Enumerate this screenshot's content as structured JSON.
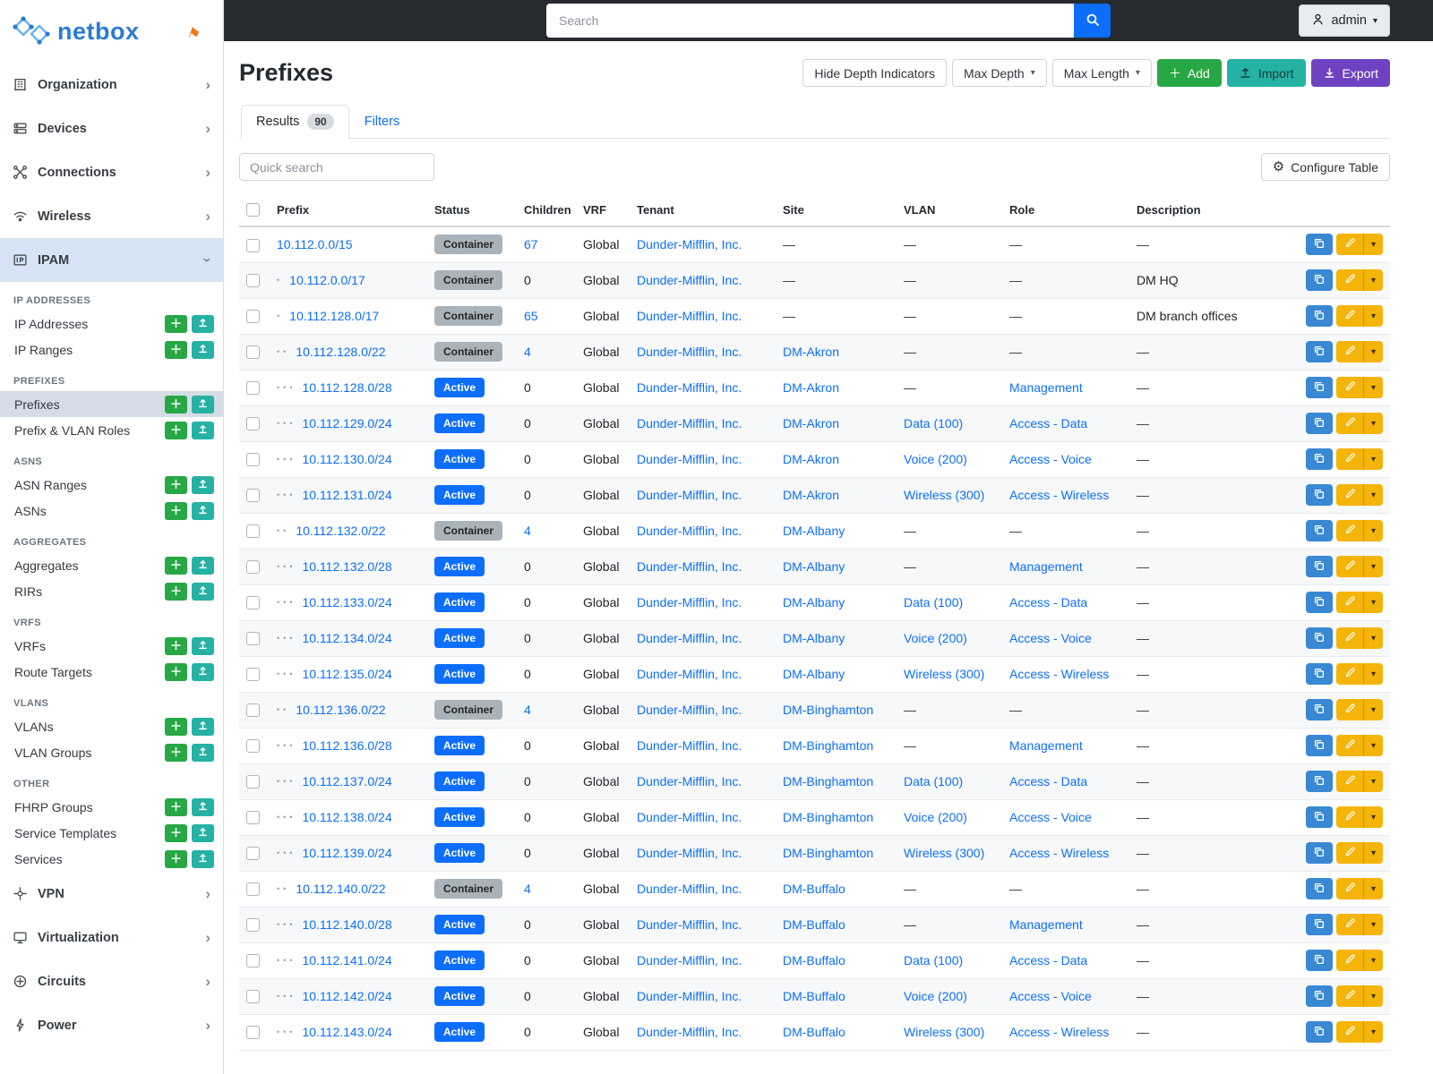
{
  "brand": {
    "name": "netbox"
  },
  "colors": {
    "brand_blue": "#2b7bd3",
    "topbar_bg": "#272b30",
    "link": "#0d6efd",
    "active_badge": "#0d6efd",
    "container_badge": "#aab2ba",
    "green": "#28a745",
    "teal": "#25b2a4",
    "purple": "#6f42c1",
    "yellow": "#f5b409",
    "action_blue": "#3988d4",
    "nav_active_bg": "#d6e4f5",
    "selected_item_bg": "#d4dce5"
  },
  "topbar": {
    "search_placeholder": "Search",
    "user_label": "admin"
  },
  "sidebar": {
    "nav_top": [
      {
        "label": "Organization",
        "icon": "building"
      },
      {
        "label": "Devices",
        "icon": "devices"
      },
      {
        "label": "Connections",
        "icon": "connections"
      },
      {
        "label": "Wireless",
        "icon": "wireless"
      },
      {
        "label": "IPAM",
        "icon": "ipam",
        "active": true,
        "expanded": true
      }
    ],
    "ipam_sections": [
      {
        "header": "IP ADDRESSES",
        "items": [
          {
            "label": "IP Addresses"
          },
          {
            "label": "IP Ranges"
          }
        ]
      },
      {
        "header": "PREFIXES",
        "items": [
          {
            "label": "Prefixes",
            "selected": true
          },
          {
            "label": "Prefix & VLAN Roles"
          }
        ]
      },
      {
        "header": "ASNS",
        "items": [
          {
            "label": "ASN Ranges"
          },
          {
            "label": "ASNs"
          }
        ]
      },
      {
        "header": "AGGREGATES",
        "items": [
          {
            "label": "Aggregates"
          },
          {
            "label": "RIRs"
          }
        ]
      },
      {
        "header": "VRFS",
        "items": [
          {
            "label": "VRFs"
          },
          {
            "label": "Route Targets"
          }
        ]
      },
      {
        "header": "VLANS",
        "items": [
          {
            "label": "VLANs"
          },
          {
            "label": "VLAN Groups"
          }
        ]
      },
      {
        "header": "OTHER",
        "items": [
          {
            "label": "FHRP Groups"
          },
          {
            "label": "Service Templates"
          },
          {
            "label": "Services"
          }
        ]
      }
    ],
    "nav_bottom": [
      {
        "label": "VPN",
        "icon": "vpn"
      },
      {
        "label": "Virtualization",
        "icon": "virtualization"
      },
      {
        "label": "Circuits",
        "icon": "circuits"
      },
      {
        "label": "Power",
        "icon": "power"
      }
    ]
  },
  "page": {
    "title": "Prefixes",
    "actions": {
      "hide_depth": "Hide Depth Indicators",
      "max_depth": "Max Depth",
      "max_length": "Max Length",
      "add": "Add",
      "import": "Import",
      "export": "Export"
    },
    "tabs": [
      {
        "label": "Results",
        "badge": "90"
      },
      {
        "label": "Filters"
      }
    ],
    "quick_search_placeholder": "Quick search",
    "configure_table": "Configure Table"
  },
  "table": {
    "columns": [
      "Prefix",
      "Status",
      "Children",
      "VRF",
      "Tenant",
      "Site",
      "VLAN",
      "Role",
      "Description"
    ],
    "rows": [
      {
        "prefix": "10.112.0.0/15",
        "depth": 0,
        "status": "Container",
        "children": "67",
        "vrf": "Global",
        "tenant": "Dunder-Mifflin, Inc.",
        "site": "",
        "vlan": "",
        "role": "",
        "description": ""
      },
      {
        "prefix": "10.112.0.0/17",
        "depth": 1,
        "status": "Container",
        "children": "0",
        "vrf": "Global",
        "tenant": "Dunder-Mifflin, Inc.",
        "site": "",
        "vlan": "",
        "role": "",
        "description": "DM HQ"
      },
      {
        "prefix": "10.112.128.0/17",
        "depth": 1,
        "status": "Container",
        "children": "65",
        "vrf": "Global",
        "tenant": "Dunder-Mifflin, Inc.",
        "site": "",
        "vlan": "",
        "role": "",
        "description": "DM branch offices"
      },
      {
        "prefix": "10.112.128.0/22",
        "depth": 2,
        "status": "Container",
        "children": "4",
        "vrf": "Global",
        "tenant": "Dunder-Mifflin, Inc.",
        "site": "DM-Akron",
        "vlan": "",
        "role": "",
        "description": ""
      },
      {
        "prefix": "10.112.128.0/28",
        "depth": 3,
        "status": "Active",
        "children": "0",
        "vrf": "Global",
        "tenant": "Dunder-Mifflin, Inc.",
        "site": "DM-Akron",
        "vlan": "",
        "role": "Management",
        "description": ""
      },
      {
        "prefix": "10.112.129.0/24",
        "depth": 3,
        "status": "Active",
        "children": "0",
        "vrf": "Global",
        "tenant": "Dunder-Mifflin, Inc.",
        "site": "DM-Akron",
        "vlan": "Data (100)",
        "role": "Access - Data",
        "description": ""
      },
      {
        "prefix": "10.112.130.0/24",
        "depth": 3,
        "status": "Active",
        "children": "0",
        "vrf": "Global",
        "tenant": "Dunder-Mifflin, Inc.",
        "site": "DM-Akron",
        "vlan": "Voice (200)",
        "role": "Access - Voice",
        "description": ""
      },
      {
        "prefix": "10.112.131.0/24",
        "depth": 3,
        "status": "Active",
        "children": "0",
        "vrf": "Global",
        "tenant": "Dunder-Mifflin, Inc.",
        "site": "DM-Akron",
        "vlan": "Wireless (300)",
        "role": "Access - Wireless",
        "description": ""
      },
      {
        "prefix": "10.112.132.0/22",
        "depth": 2,
        "status": "Container",
        "children": "4",
        "vrf": "Global",
        "tenant": "Dunder-Mifflin, Inc.",
        "site": "DM-Albany",
        "vlan": "",
        "role": "",
        "description": ""
      },
      {
        "prefix": "10.112.132.0/28",
        "depth": 3,
        "status": "Active",
        "children": "0",
        "vrf": "Global",
        "tenant": "Dunder-Mifflin, Inc.",
        "site": "DM-Albany",
        "vlan": "",
        "role": "Management",
        "description": ""
      },
      {
        "prefix": "10.112.133.0/24",
        "depth": 3,
        "status": "Active",
        "children": "0",
        "vrf": "Global",
        "tenant": "Dunder-Mifflin, Inc.",
        "site": "DM-Albany",
        "vlan": "Data (100)",
        "role": "Access - Data",
        "description": ""
      },
      {
        "prefix": "10.112.134.0/24",
        "depth": 3,
        "status": "Active",
        "children": "0",
        "vrf": "Global",
        "tenant": "Dunder-Mifflin, Inc.",
        "site": "DM-Albany",
        "vlan": "Voice (200)",
        "role": "Access - Voice",
        "description": ""
      },
      {
        "prefix": "10.112.135.0/24",
        "depth": 3,
        "status": "Active",
        "children": "0",
        "vrf": "Global",
        "tenant": "Dunder-Mifflin, Inc.",
        "site": "DM-Albany",
        "vlan": "Wireless (300)",
        "role": "Access - Wireless",
        "description": ""
      },
      {
        "prefix": "10.112.136.0/22",
        "depth": 2,
        "status": "Container",
        "children": "4",
        "vrf": "Global",
        "tenant": "Dunder-Mifflin, Inc.",
        "site": "DM-Binghamton",
        "vlan": "",
        "role": "",
        "description": ""
      },
      {
        "prefix": "10.112.136.0/28",
        "depth": 3,
        "status": "Active",
        "children": "0",
        "vrf": "Global",
        "tenant": "Dunder-Mifflin, Inc.",
        "site": "DM-Binghamton",
        "vlan": "",
        "role": "Management",
        "description": ""
      },
      {
        "prefix": "10.112.137.0/24",
        "depth": 3,
        "status": "Active",
        "children": "0",
        "vrf": "Global",
        "tenant": "Dunder-Mifflin, Inc.",
        "site": "DM-Binghamton",
        "vlan": "Data (100)",
        "role": "Access - Data",
        "description": ""
      },
      {
        "prefix": "10.112.138.0/24",
        "depth": 3,
        "status": "Active",
        "children": "0",
        "vrf": "Global",
        "tenant": "Dunder-Mifflin, Inc.",
        "site": "DM-Binghamton",
        "vlan": "Voice (200)",
        "role": "Access - Voice",
        "description": ""
      },
      {
        "prefix": "10.112.139.0/24",
        "depth": 3,
        "status": "Active",
        "children": "0",
        "vrf": "Global",
        "tenant": "Dunder-Mifflin, Inc.",
        "site": "DM-Binghamton",
        "vlan": "Wireless (300)",
        "role": "Access - Wireless",
        "description": ""
      },
      {
        "prefix": "10.112.140.0/22",
        "depth": 2,
        "status": "Container",
        "children": "4",
        "vrf": "Global",
        "tenant": "Dunder-Mifflin, Inc.",
        "site": "DM-Buffalo",
        "vlan": "",
        "role": "",
        "description": ""
      },
      {
        "prefix": "10.112.140.0/28",
        "depth": 3,
        "status": "Active",
        "children": "0",
        "vrf": "Global",
        "tenant": "Dunder-Mifflin, Inc.",
        "site": "DM-Buffalo",
        "vlan": "",
        "role": "Management",
        "description": ""
      },
      {
        "prefix": "10.112.141.0/24",
        "depth": 3,
        "status": "Active",
        "children": "0",
        "vrf": "Global",
        "tenant": "Dunder-Mifflin, Inc.",
        "site": "DM-Buffalo",
        "vlan": "Data (100)",
        "role": "Access - Data",
        "description": ""
      },
      {
        "prefix": "10.112.142.0/24",
        "depth": 3,
        "status": "Active",
        "children": "0",
        "vrf": "Global",
        "tenant": "Dunder-Mifflin, Inc.",
        "site": "DM-Buffalo",
        "vlan": "Voice (200)",
        "role": "Access - Voice",
        "description": ""
      },
      {
        "prefix": "10.112.143.0/24",
        "depth": 3,
        "status": "Active",
        "children": "0",
        "vrf": "Global",
        "tenant": "Dunder-Mifflin, Inc.",
        "site": "DM-Buffalo",
        "vlan": "Wireless (300)",
        "role": "Access - Wireless",
        "description": ""
      }
    ]
  }
}
